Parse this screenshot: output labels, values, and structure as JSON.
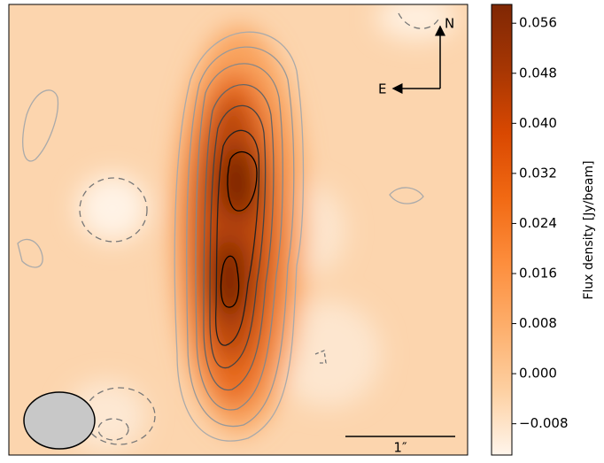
{
  "chart_data": {
    "type": "image",
    "colorbar_label": "Flux density [Jy/beam]",
    "ylim": [
      -0.013,
      0.059
    ],
    "yticks": [
      {
        "value": -0.008,
        "label": "−0.008"
      },
      {
        "value": 0,
        "label": "0.000"
      },
      0.008,
      0.016,
      0.024,
      0.032,
      {
        "value": 0.04,
        "label": "0.040"
      },
      0.048,
      0.056
    ],
    "colormap": [
      "#fff5eb",
      "#fdd0a2",
      "#fdae6b",
      "#fd8d3c",
      "#f16913",
      "#d94801",
      "#a63603",
      "#7f2704"
    ],
    "annotations": {
      "north": "N",
      "east": "E",
      "scale": "1″"
    }
  }
}
